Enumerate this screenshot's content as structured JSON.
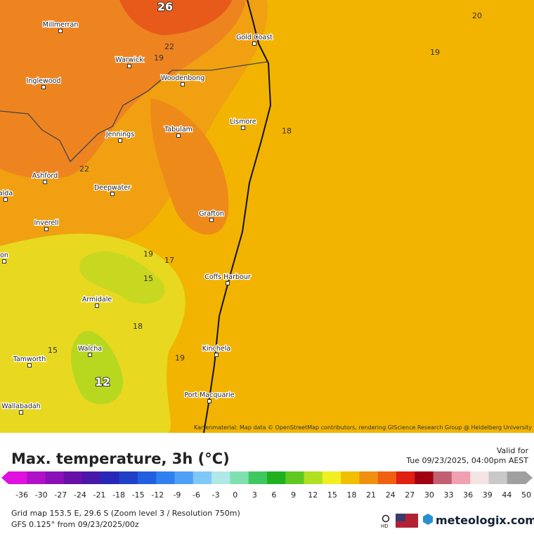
{
  "map": {
    "towns": [
      "Millmerran",
      "Warwick",
      "Inglewood",
      "Woodenbong",
      "Gold Coast",
      "Lismore",
      "Tabulam",
      "Jennings",
      "Ashford",
      "Deepwater",
      "alda",
      "Inverell",
      "Grafton",
      "on",
      "Coffs Harbour",
      "Armidale",
      "Kinchela",
      "Walcha",
      "Tamworth",
      "Port Macquarie",
      "Wallabadah"
    ],
    "contour_labels": [
      "26",
      "22",
      "19",
      "20",
      "19",
      "18",
      "22",
      "19",
      "17",
      "15",
      "18",
      "15",
      "19",
      "12"
    ],
    "attribution": "Kartenmaterial: Map data © OpenStreetMap contributors, rendering GIScience Research Group @ Heidelberg University"
  },
  "legend": {
    "title": "Max. temperature, 3h (°C)",
    "valid_label": "Valid for",
    "valid_time": "Tue 09/23/2025, 04:00pm AEST",
    "scale_ticks": [
      -36,
      -30,
      -27,
      -24,
      -21,
      -18,
      -15,
      -12,
      -9,
      -6,
      -3,
      0,
      3,
      6,
      9,
      12,
      15,
      18,
      21,
      24,
      27,
      30,
      33,
      36,
      39,
      44,
      50
    ],
    "colors": [
      "#e010e0",
      "#b010c8",
      "#8a10b8",
      "#6810a8",
      "#4818a8",
      "#2828b8",
      "#2040c8",
      "#2060e0",
      "#3080f0",
      "#50a0f8",
      "#80c8f8",
      "#b0e8e8",
      "#80e0b0",
      "#40c860",
      "#20b020",
      "#60c820",
      "#b0e020",
      "#f0f020",
      "#f0c000",
      "#f09010",
      "#f06010",
      "#e02010",
      "#a00010",
      "#c06070",
      "#f0a0b0",
      "#f4e4e4",
      "#c8c8c8",
      "#a0a0a0"
    ]
  },
  "footer": {
    "grid_info": "Grid map 153.5 E, 29.6 S (Zoom level 3 / Resolution 750m)",
    "model_info": "GFS 0.125° from  09/23/2025/00z",
    "hd": "HD",
    "brand": "meteologix.com"
  }
}
